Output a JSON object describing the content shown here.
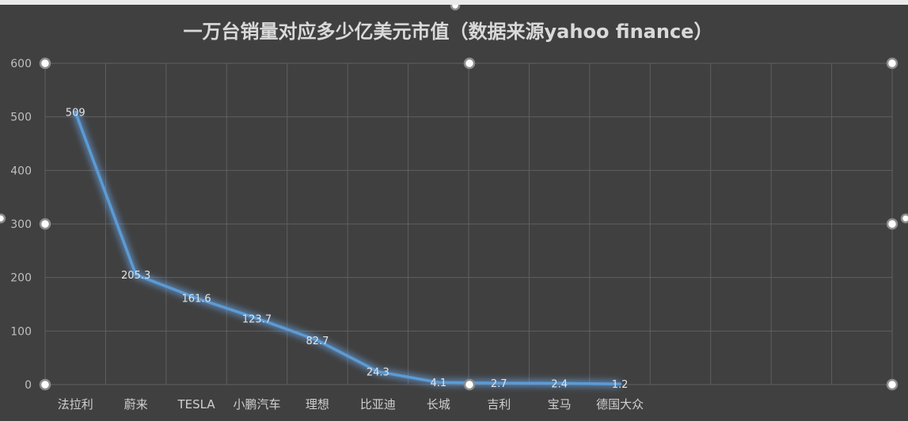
{
  "chart_data": {
    "type": "line",
    "title": "一万台销量对应多少亿美元市值（数据来源yahoo finance）",
    "categories": [
      "法拉利",
      "蔚来",
      "TESLA",
      "小鹏汽车",
      "理想",
      "比亚迪",
      "长城",
      "吉利",
      "宝马",
      "德国大众"
    ],
    "values": [
      509,
      205.3,
      161.6,
      123.7,
      82.7,
      24.3,
      4.1,
      2.7,
      2.4,
      1.2
    ],
    "data_labels": [
      "509",
      "205.3",
      "161.6",
      "123.7",
      "82.7",
      "24.3",
      "4.1",
      "2.7",
      "2.4",
      "1.2"
    ],
    "ylim": [
      0,
      600
    ],
    "y_ticks": [
      "0",
      "100",
      "200",
      "300",
      "400",
      "500",
      "600"
    ],
    "xlabel": "",
    "ylabel": "",
    "grid": true,
    "legend": "none",
    "colors": {
      "background": "#404040",
      "line": "#5b9bd5",
      "glow": "#6fb3ff",
      "grid": "#5f5f5f",
      "text": "#d9d9d9"
    }
  }
}
